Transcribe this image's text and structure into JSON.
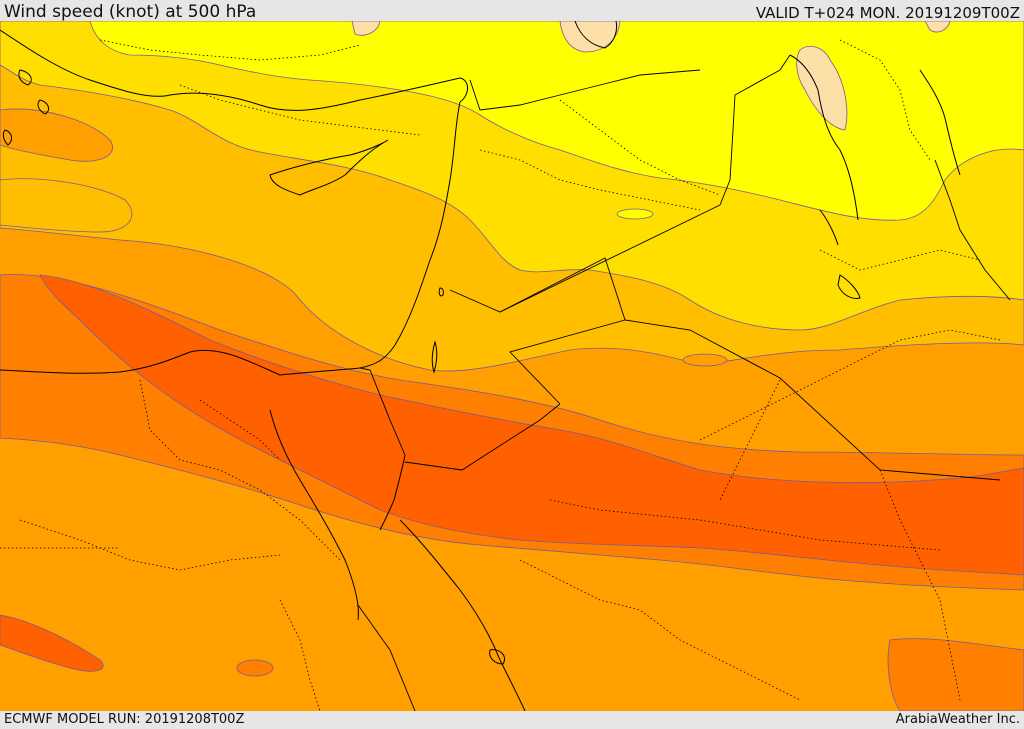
{
  "header": {
    "title": "Wind speed (knot) at 500 hPa",
    "valid": "VALID T+024 MON. 20191209T00Z"
  },
  "footer": {
    "model_run": "ECMWF MODEL RUN: 20191208T00Z",
    "credit": "ArabiaWeather Inc."
  },
  "colors": {
    "band_lightest": "#ffff00",
    "band_light": "#ffdf00",
    "band_mid": "#ffbf00",
    "band_orange": "#ff9f00",
    "band_dark_orange": "#ff8000",
    "band_darkest": "#ff6000",
    "land_beige": "#fde0a8",
    "contour_line": "#7a5a99",
    "border_line": "#000000"
  }
}
